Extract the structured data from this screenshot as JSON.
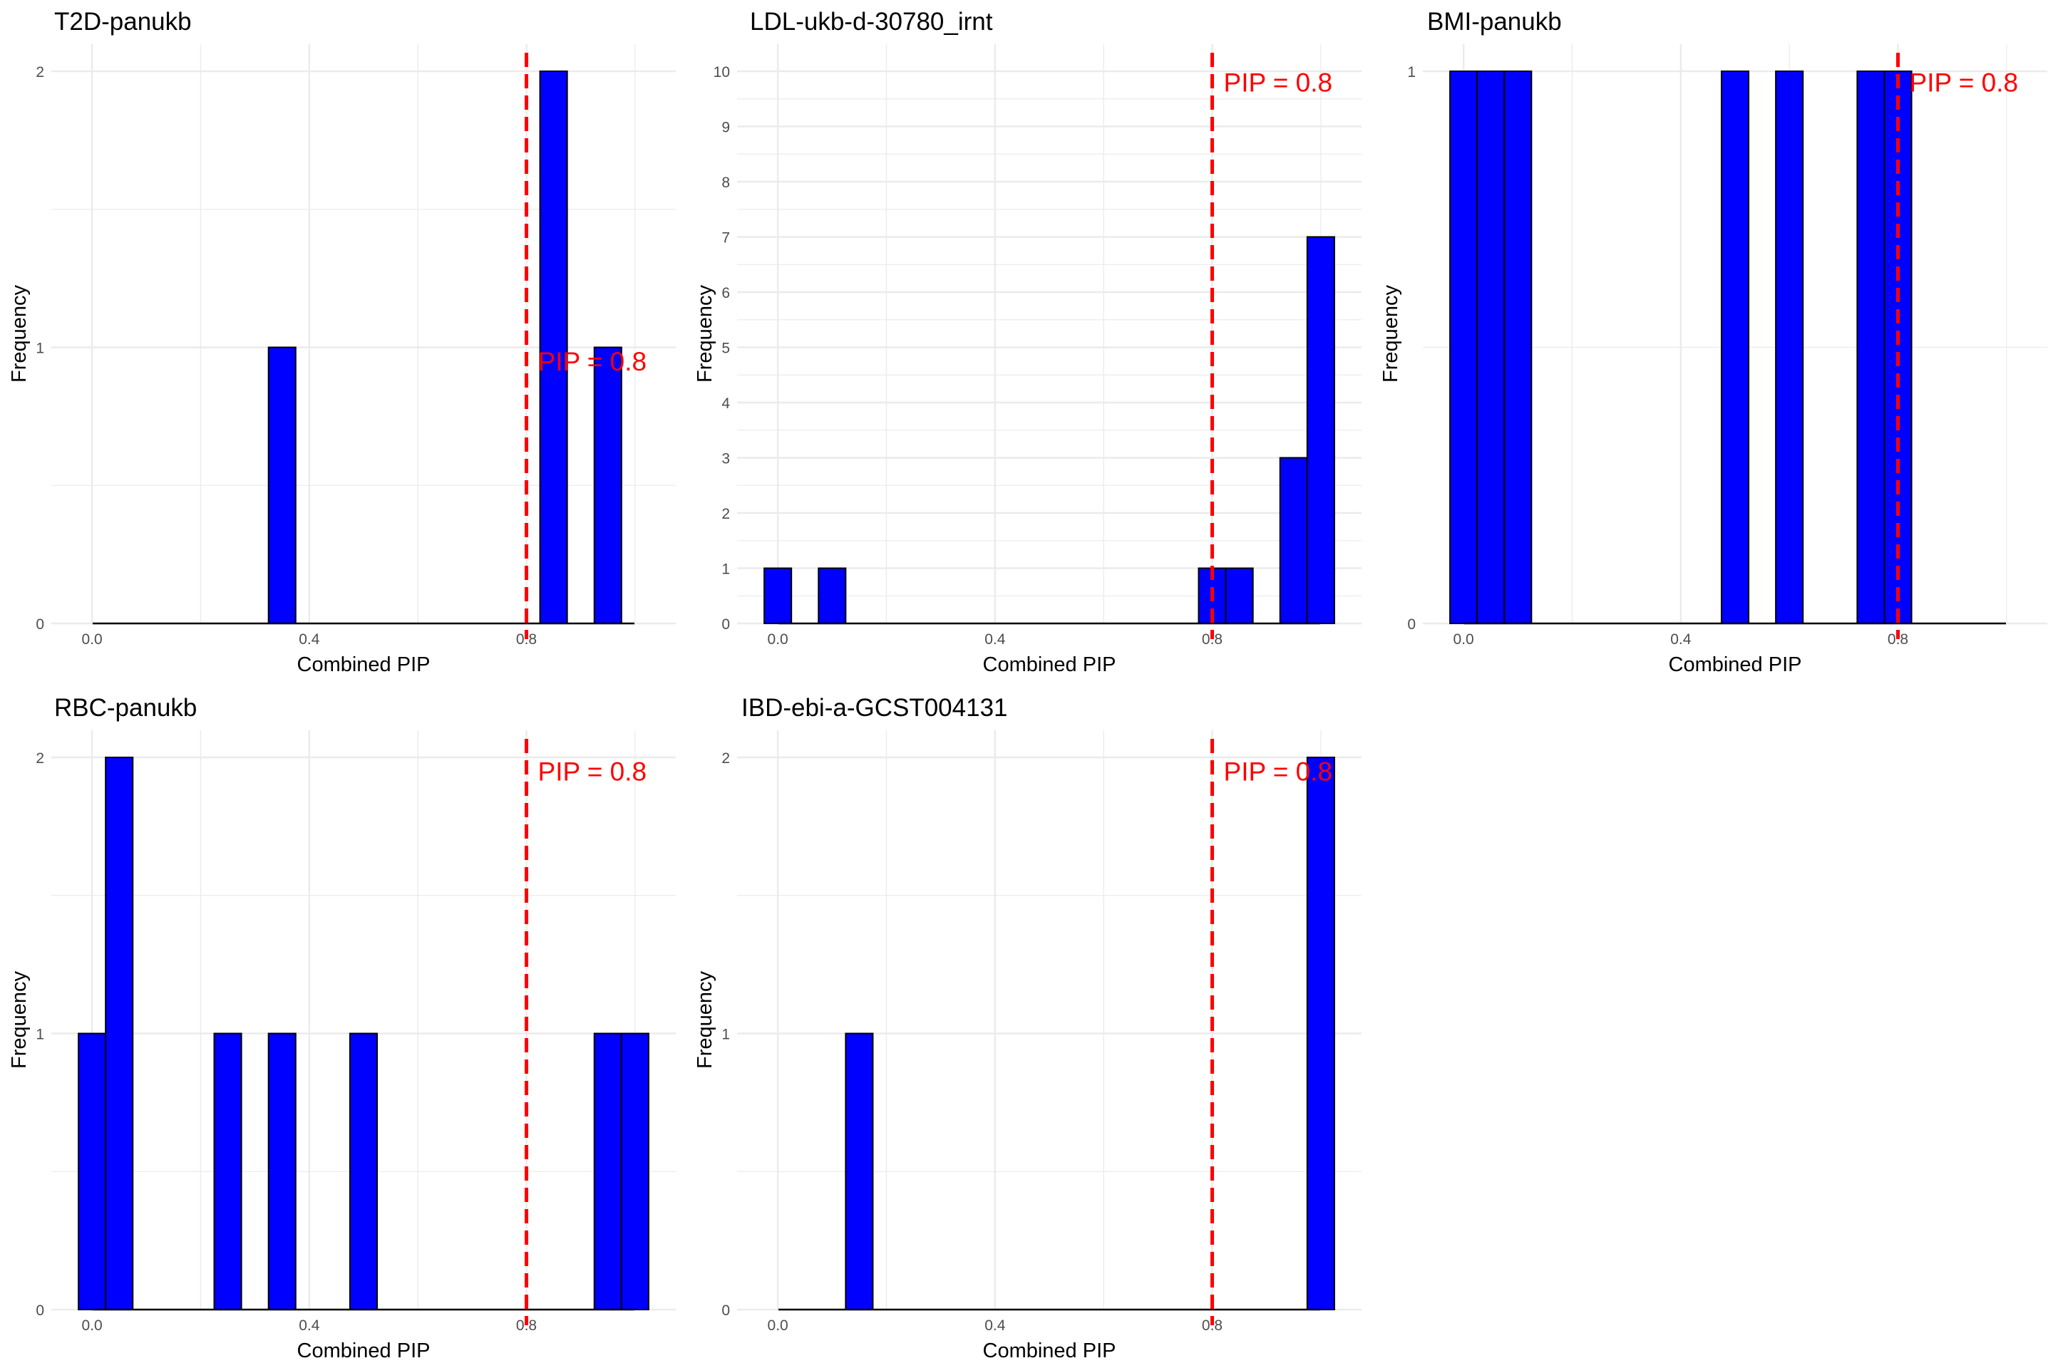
{
  "figure": {
    "accent_bar": "#0000ff",
    "threshold_color": "#ff0000",
    "grid_color": "#ebebeb"
  },
  "chart_data": [
    {
      "type": "bar",
      "title": "T2D-panukb",
      "xlabel": "Combined PIP",
      "ylabel": "Frequency",
      "xlim": [
        -0.075,
        1.075
      ],
      "ylim": [
        0,
        2
      ],
      "xticks": [
        0.0,
        0.4,
        0.8
      ],
      "xtick_labels": [
        "0.0",
        "0.4",
        "0.8"
      ],
      "yticks": [
        0,
        1,
        2
      ],
      "ytick_labels": [
        "0",
        "1",
        "2"
      ],
      "bin_width": 0.05,
      "bins": [
        {
          "x": 0.35,
          "count": 1
        },
        {
          "x": 0.85,
          "count": 2
        },
        {
          "x": 0.95,
          "count": 1
        }
      ],
      "threshold": {
        "x": 0.8,
        "label": "PIP = 0.8",
        "label_y": 0.95
      }
    },
    {
      "type": "bar",
      "title": "LDL-ukb-d-30780_irnt",
      "xlabel": "Combined PIP",
      "ylabel": "Frequency",
      "xlim": [
        -0.075,
        1.075
      ],
      "ylim": [
        0,
        10
      ],
      "xticks": [
        0.0,
        0.4,
        0.8
      ],
      "xtick_labels": [
        "0.0",
        "0.4",
        "0.8"
      ],
      "yticks": [
        0,
        1,
        2,
        3,
        4,
        5,
        6,
        7,
        8,
        9,
        10
      ],
      "ytick_labels": [
        "0",
        "1",
        "2",
        "3",
        "4",
        "5",
        "6",
        "7",
        "8",
        "9",
        "10"
      ],
      "bin_width": 0.05,
      "bins": [
        {
          "x": 0.0,
          "count": 1
        },
        {
          "x": 0.1,
          "count": 1
        },
        {
          "x": 0.8,
          "count": 1
        },
        {
          "x": 0.85,
          "count": 1
        },
        {
          "x": 0.95,
          "count": 3
        },
        {
          "x": 1.0,
          "count": 7
        }
      ],
      "threshold": {
        "x": 0.8,
        "label": "PIP = 0.8",
        "label_y": 9.8
      }
    },
    {
      "type": "bar",
      "title": "BMI-panukb",
      "xlabel": "Combined PIP",
      "ylabel": "Frequency",
      "xlim": [
        -0.075,
        1.075
      ],
      "ylim": [
        0,
        1
      ],
      "xticks": [
        0.0,
        0.4,
        0.8
      ],
      "xtick_labels": [
        "0.0",
        "0.4",
        "0.8"
      ],
      "yticks": [
        0,
        1
      ],
      "ytick_labels": [
        "0",
        "1"
      ],
      "bin_width": 0.05,
      "bins": [
        {
          "x": 0.0,
          "count": 1
        },
        {
          "x": 0.05,
          "count": 1
        },
        {
          "x": 0.1,
          "count": 1
        },
        {
          "x": 0.5,
          "count": 1
        },
        {
          "x": 0.6,
          "count": 1
        },
        {
          "x": 0.75,
          "count": 1
        },
        {
          "x": 0.8,
          "count": 1
        }
      ],
      "threshold": {
        "x": 0.8,
        "label": "PIP = 0.8",
        "label_y": 0.98
      }
    },
    {
      "type": "bar",
      "title": "RBC-panukb",
      "xlabel": "Combined PIP",
      "ylabel": "Frequency",
      "xlim": [
        -0.075,
        1.075
      ],
      "ylim": [
        0,
        2
      ],
      "xticks": [
        0.0,
        0.4,
        0.8
      ],
      "xtick_labels": [
        "0.0",
        "0.4",
        "0.8"
      ],
      "yticks": [
        0,
        1,
        2
      ],
      "ytick_labels": [
        "0",
        "1",
        "2"
      ],
      "bin_width": 0.05,
      "bins": [
        {
          "x": 0.0,
          "count": 1
        },
        {
          "x": 0.05,
          "count": 2
        },
        {
          "x": 0.25,
          "count": 1
        },
        {
          "x": 0.35,
          "count": 1
        },
        {
          "x": 0.5,
          "count": 1
        },
        {
          "x": 0.95,
          "count": 1
        },
        {
          "x": 1.0,
          "count": 1
        }
      ],
      "threshold": {
        "x": 0.8,
        "label": "PIP = 0.8",
        "label_y": 1.95
      }
    },
    {
      "type": "bar",
      "title": "IBD-ebi-a-GCST004131",
      "xlabel": "Combined PIP",
      "ylabel": "Frequency",
      "xlim": [
        -0.075,
        1.075
      ],
      "ylim": [
        0,
        2
      ],
      "xticks": [
        0.0,
        0.4,
        0.8
      ],
      "xtick_labels": [
        "0.0",
        "0.4",
        "0.8"
      ],
      "yticks": [
        0,
        1,
        2
      ],
      "ytick_labels": [
        "0",
        "1",
        "2"
      ],
      "bin_width": 0.05,
      "bins": [
        {
          "x": 0.15,
          "count": 1
        },
        {
          "x": 1.0,
          "count": 2
        }
      ],
      "threshold": {
        "x": 0.8,
        "label": "PIP = 0.8",
        "label_y": 1.95
      }
    }
  ]
}
